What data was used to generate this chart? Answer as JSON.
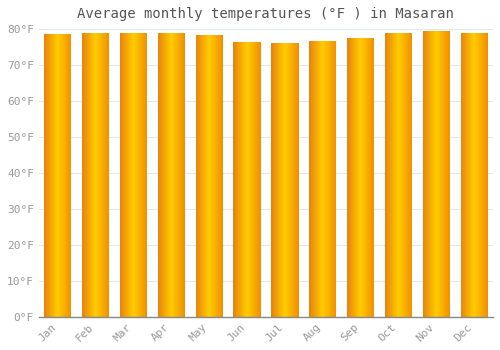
{
  "title": "Average monthly temperatures (°F ) in Masaran",
  "months": [
    "Jan",
    "Feb",
    "Mar",
    "Apr",
    "May",
    "Jun",
    "Jul",
    "Aug",
    "Sep",
    "Oct",
    "Nov",
    "Dec"
  ],
  "values": [
    78.5,
    79.0,
    79.0,
    78.8,
    78.3,
    76.5,
    76.2,
    76.8,
    77.5,
    79.0,
    79.5,
    79.0
  ],
  "ylim": [
    0,
    80
  ],
  "yticks": [
    0,
    10,
    20,
    30,
    40,
    50,
    60,
    70,
    80
  ],
  "bar_color_left": "#E8820C",
  "bar_color_center": "#FFCC00",
  "bar_color_right": "#F09000",
  "background_color": "#ffffff",
  "plot_bg_color": "#ffffff",
  "grid_color": "#e0e8f0",
  "title_fontsize": 10,
  "tick_fontsize": 8,
  "tick_color": "#999999",
  "title_color": "#555555"
}
